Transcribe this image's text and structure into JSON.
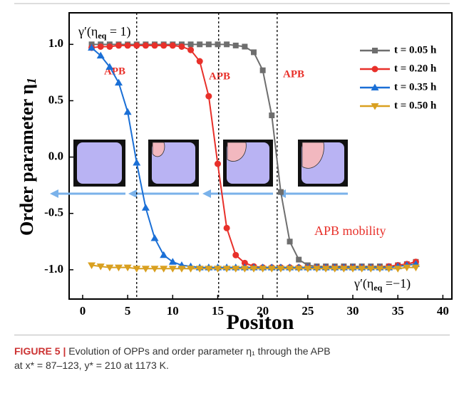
{
  "chart_data": {
    "type": "line",
    "ylabel": "Order parameter η",
    "ylabel_sub": "1",
    "xlabel": "Positon",
    "x": [
      1,
      2,
      3,
      4,
      5,
      6,
      7,
      8,
      9,
      10,
      11,
      12,
      13,
      14,
      15,
      16,
      17,
      18,
      19,
      20,
      21,
      22,
      23,
      24,
      25,
      26,
      27,
      28,
      29,
      30,
      31,
      32,
      33,
      34,
      35,
      36,
      37
    ],
    "xlim": [
      -1.5,
      41
    ],
    "ylim": [
      -1.26,
      1.28
    ],
    "xticks": [
      0,
      5,
      10,
      15,
      20,
      25,
      30,
      35,
      40
    ],
    "yticks": [
      {
        "value": 1,
        "label": "1.0"
      },
      0.5,
      {
        "value": 0,
        "label": "0.0"
      },
      -0.5,
      {
        "value": -1,
        "label": "-1.0"
      }
    ],
    "vlines": [
      6,
      15.1,
      21.6
    ],
    "legend": "upper right",
    "series": [
      {
        "name": "t = 0.05 h",
        "color": "#6e6e6e",
        "marker": "square",
        "values": [
          1,
          1,
          1,
          1,
          1,
          1,
          1,
          1,
          1,
          1,
          1,
          1,
          1,
          1,
          1,
          1,
          0.99,
          0.98,
          0.93,
          0.77,
          0.37,
          -0.31,
          -0.75,
          -0.91,
          -0.96,
          -0.97,
          -0.97,
          -0.97,
          -0.97,
          -0.97,
          -0.97,
          -0.97,
          -0.97,
          -0.97,
          -0.96,
          -0.95,
          -0.93
        ]
      },
      {
        "name": "t = 0.20 h",
        "color": "#e8302a",
        "marker": "circle",
        "values": [
          0.97,
          0.98,
          0.98,
          0.99,
          0.99,
          0.99,
          0.99,
          0.99,
          0.99,
          0.99,
          0.98,
          0.95,
          0.85,
          0.54,
          -0.06,
          -0.63,
          -0.87,
          -0.94,
          -0.97,
          -0.98,
          -0.98,
          -0.98,
          -0.98,
          -0.98,
          -0.98,
          -0.98,
          -0.98,
          -0.98,
          -0.98,
          -0.98,
          -0.98,
          -0.98,
          -0.98,
          -0.97,
          -0.96,
          -0.95,
          -0.93
        ]
      },
      {
        "name": "t = 0.35 h",
        "color": "#1a6fd6",
        "marker": "triangle-up",
        "values": [
          0.97,
          0.9,
          0.8,
          0.66,
          0.4,
          -0.05,
          -0.45,
          -0.72,
          -0.87,
          -0.93,
          -0.96,
          -0.97,
          -0.98,
          -0.98,
          -0.98,
          -0.98,
          -0.98,
          -0.98,
          -0.98,
          -0.98,
          -0.98,
          -0.98,
          -0.98,
          -0.98,
          -0.98,
          -0.98,
          -0.98,
          -0.98,
          -0.98,
          -0.98,
          -0.98,
          -0.98,
          -0.98,
          -0.98,
          -0.97,
          -0.96,
          -0.95
        ]
      },
      {
        "name": "t = 0.50 h",
        "color": "#d9a020",
        "marker": "triangle-down",
        "values": [
          -0.96,
          -0.97,
          -0.98,
          -0.98,
          -0.98,
          -0.99,
          -0.99,
          -0.99,
          -0.99,
          -0.99,
          -0.99,
          -0.99,
          -0.99,
          -0.99,
          -0.99,
          -0.99,
          -0.99,
          -0.99,
          -0.99,
          -0.99,
          -0.99,
          -0.99,
          -0.99,
          -0.99,
          -0.99,
          -0.99,
          -0.99,
          -0.99,
          -0.99,
          -0.99,
          -0.99,
          -0.99,
          -0.99,
          -0.99,
          -0.99,
          -0.98,
          -0.98
        ]
      }
    ],
    "annotations": {
      "top": {
        "text": "γ′(η",
        "sub": "eq",
        "rest": " = 1)"
      },
      "bottom": {
        "text": "γ′(η",
        "sub": "eq",
        "rest": " =−1)"
      },
      "apb": [
        "APB",
        "APB",
        "APB"
      ],
      "mobility": "APB mobility"
    }
  },
  "caption": {
    "label": "FIGURE 5 |",
    "line1": "Evolution of OPPs and order parameter η₁ through the APB",
    "line2": "at x* = 87–123, y* = 210 at 1173 K."
  }
}
